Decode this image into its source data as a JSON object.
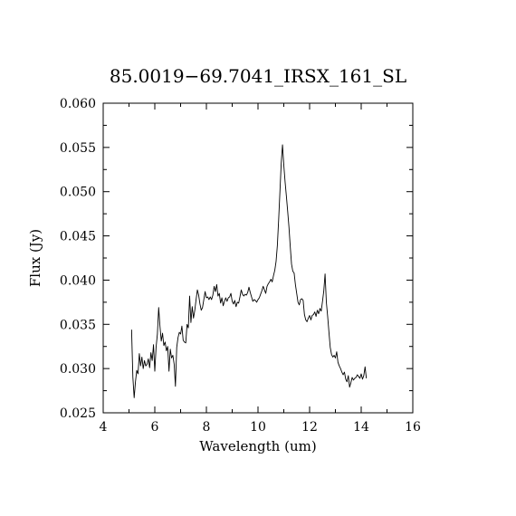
{
  "chart_data": {
    "type": "line",
    "title": "85.0019−69.7041_IRSX_161_SL",
    "xlabel": "Wavelength (um)",
    "ylabel": "Flux (Jy)",
    "xlim": [
      4,
      16
    ],
    "ylim": [
      0.025,
      0.06
    ],
    "x_ticks": [
      "4",
      "6",
      "8",
      "10",
      "12",
      "14",
      "16"
    ],
    "y_ticks": [
      "0.025",
      "0.030",
      "0.035",
      "0.040",
      "0.045",
      "0.050",
      "0.055",
      "0.060"
    ],
    "x_tick_values": [
      4,
      6,
      8,
      10,
      12,
      14,
      16
    ],
    "y_tick_values": [
      0.025,
      0.03,
      0.035,
      0.04,
      0.045,
      0.05,
      0.055,
      0.06
    ],
    "x_minor_step": 1,
    "y_minor_step": 0.0025,
    "grid": false,
    "series": [
      {
        "x": [
          5.1,
          5.15,
          5.2,
          5.25,
          5.3,
          5.35,
          5.4,
          5.45,
          5.5,
          5.55,
          5.6,
          5.65,
          5.7,
          5.75,
          5.8,
          5.85,
          5.9,
          5.95,
          6.0,
          6.05,
          6.1,
          6.15,
          6.2,
          6.25,
          6.3,
          6.35,
          6.4,
          6.45,
          6.5,
          6.55,
          6.6,
          6.65,
          6.7,
          6.75,
          6.8,
          6.85,
          6.9,
          6.95,
          7.0,
          7.05,
          7.1,
          7.15,
          7.2,
          7.25,
          7.3,
          7.35,
          7.4,
          7.45,
          7.5,
          7.55,
          7.6,
          7.65,
          7.7,
          7.75,
          7.8,
          7.85,
          7.9,
          7.95,
          8.0,
          8.05,
          8.1,
          8.15,
          8.2,
          8.25,
          8.3,
          8.35,
          8.4,
          8.45,
          8.5,
          8.55,
          8.6,
          8.65,
          8.7,
          8.75,
          8.8,
          8.85,
          8.9,
          8.95,
          9.0,
          9.05,
          9.1,
          9.15,
          9.2,
          9.25,
          9.3,
          9.35,
          9.4,
          9.45,
          9.5,
          9.55,
          9.6,
          9.65,
          9.7,
          9.75,
          9.8,
          9.85,
          9.9,
          9.95,
          10.0,
          10.05,
          10.1,
          10.15,
          10.2,
          10.25,
          10.3,
          10.35,
          10.4,
          10.45,
          10.5,
          10.55,
          10.6,
          10.65,
          10.7,
          10.75,
          10.8,
          10.85,
          10.9,
          10.95,
          11.0,
          11.05,
          11.1,
          11.15,
          11.2,
          11.25,
          11.3,
          11.35,
          11.4,
          11.45,
          11.5,
          11.55,
          11.6,
          11.65,
          11.7,
          11.75,
          11.8,
          11.85,
          11.9,
          11.95,
          12.0,
          12.05,
          12.1,
          12.15,
          12.2,
          12.25,
          12.3,
          12.35,
          12.4,
          12.45,
          12.5,
          12.55,
          12.6,
          12.65,
          12.7,
          12.75,
          12.8,
          12.85,
          12.9,
          12.95,
          13.0,
          13.05,
          13.1,
          13.15,
          13.2,
          13.25,
          13.3,
          13.35,
          13.4,
          13.45,
          13.5,
          13.55,
          13.6,
          13.65,
          13.7,
          13.75,
          13.8,
          13.85,
          13.9,
          13.95,
          14.0,
          14.05,
          14.1,
          14.15,
          14.2
        ],
        "y": [
          0.0344,
          0.029,
          0.0267,
          0.0285,
          0.0298,
          0.0294,
          0.0317,
          0.0303,
          0.0313,
          0.03,
          0.0309,
          0.0303,
          0.0305,
          0.0311,
          0.0301,
          0.0318,
          0.0309,
          0.0327,
          0.0297,
          0.0324,
          0.0339,
          0.0369,
          0.0348,
          0.0331,
          0.034,
          0.0326,
          0.033,
          0.032,
          0.0325,
          0.0297,
          0.0322,
          0.0312,
          0.0315,
          0.0305,
          0.028,
          0.0324,
          0.0335,
          0.0341,
          0.0339,
          0.0348,
          0.0332,
          0.033,
          0.0329,
          0.035,
          0.0346,
          0.0382,
          0.0352,
          0.037,
          0.0357,
          0.0366,
          0.0378,
          0.0389,
          0.0383,
          0.0373,
          0.0366,
          0.0369,
          0.0378,
          0.0387,
          0.038,
          0.0381,
          0.0378,
          0.0381,
          0.0378,
          0.0383,
          0.0393,
          0.0387,
          0.0395,
          0.0382,
          0.0385,
          0.0374,
          0.038,
          0.0371,
          0.0376,
          0.038,
          0.0376,
          0.038,
          0.0381,
          0.0385,
          0.0376,
          0.0373,
          0.0377,
          0.037,
          0.0375,
          0.0374,
          0.0381,
          0.0389,
          0.0384,
          0.0382,
          0.0384,
          0.0383,
          0.0386,
          0.0392,
          0.0386,
          0.0381,
          0.0376,
          0.0378,
          0.0377,
          0.0375,
          0.0378,
          0.038,
          0.0384,
          0.0388,
          0.0393,
          0.0389,
          0.0385,
          0.0393,
          0.0396,
          0.0398,
          0.0401,
          0.0398,
          0.0405,
          0.0411,
          0.0421,
          0.0439,
          0.0468,
          0.05,
          0.0532,
          0.0553,
          0.053,
          0.0511,
          0.0495,
          0.0478,
          0.046,
          0.0438,
          0.0418,
          0.041,
          0.0408,
          0.0395,
          0.0385,
          0.0375,
          0.0372,
          0.0378,
          0.0379,
          0.0377,
          0.0361,
          0.0355,
          0.0353,
          0.0357,
          0.036,
          0.0355,
          0.036,
          0.0361,
          0.0364,
          0.0359,
          0.0366,
          0.0362,
          0.0368,
          0.0365,
          0.0376,
          0.0388,
          0.0407,
          0.0375,
          0.0359,
          0.0341,
          0.0324,
          0.0316,
          0.0313,
          0.0315,
          0.0312,
          0.0319,
          0.0307,
          0.0303,
          0.03,
          0.0296,
          0.0293,
          0.0296,
          0.0288,
          0.0285,
          0.0292,
          0.0279,
          0.0284,
          0.029,
          0.0287,
          0.0289,
          0.029,
          0.0293,
          0.0291,
          0.0289,
          0.0294,
          0.0288,
          0.0292,
          0.0302,
          0.0289
        ]
      }
    ]
  }
}
